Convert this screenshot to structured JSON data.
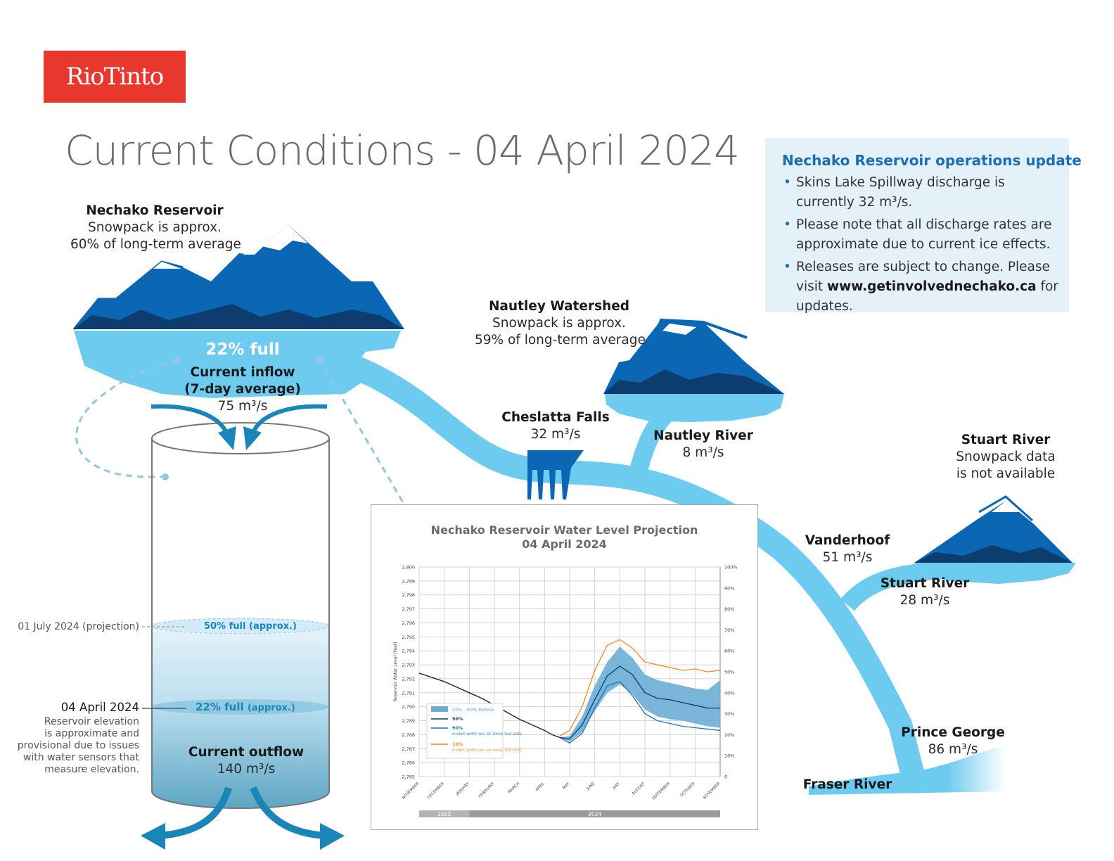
{
  "logo": {
    "text": "RioTinto"
  },
  "title": "Current Conditions - 04 April 2024",
  "ops_update": {
    "heading": "Nechako Reservoir operations update",
    "items": [
      {
        "text": "Skins Lake Spillway discharge is currently 32 m³/s."
      },
      {
        "text_before": "Please note that all discharge rates are approximate due to current ice effects."
      },
      {
        "text": "Releases are subject to change. Please visit",
        "link": "www.getinvolvednechako.ca",
        "after": "for updates."
      }
    ]
  },
  "reservoir": {
    "name": "Nechako Reservoir",
    "line1": "Snowpack is approx.",
    "line2": "60% of long-term average",
    "full": "22% full",
    "inflow_title": "Current inflow",
    "inflow_sub": "(7-day average)",
    "inflow_value": "75 m³/s",
    "outflow_title": "Current outflow",
    "outflow_value": "140 m³/s"
  },
  "nautley_ws": {
    "name": "Nautley Watershed",
    "line1": "Snowpack is approx.",
    "line2": "59% of long-term average"
  },
  "cheslatta": {
    "name": "Cheslatta Falls",
    "value": "32 m³/s"
  },
  "nautley_river": {
    "name": "Nautley River",
    "value": "8 m³/s"
  },
  "stuart_ws": {
    "name": "Stuart River",
    "line1": "Snowpack data",
    "line2": "is not available"
  },
  "vanderhoof": {
    "name": "Vanderhoof",
    "value": "51 m³/s"
  },
  "stuart_river": {
    "name": "Stuart River",
    "value": "28 m³/s"
  },
  "prince_george": {
    "name": "Prince George",
    "value": "86 m³/s"
  },
  "fraser": {
    "name": "Fraser River"
  },
  "tank": {
    "proj_date": "01 July 2024 (projection)",
    "proj_label": "50% full",
    "proj_suffix": "(approx.)",
    "cur_date": "04 April 2024",
    "cur_label": "22% full",
    "cur_suffix": "(approx.)",
    "note": [
      "Reservoir elevation",
      "is approximate and",
      "provisional due to issues",
      "with water sensors that",
      "measure elevation."
    ]
  },
  "chart_data": {
    "type": "line",
    "title": "Nechako Reservoir Water Level Projection",
    "subtitle": "04 April 2024",
    "ylabel": "Reservoir Water Level (Feet)",
    "ylim": [
      2785,
      2800
    ],
    "yticks": [
      "2,800",
      "2,799",
      "2,798",
      "2,797",
      "2,796",
      "2,795",
      "2,794",
      "2,793",
      "2,792",
      "2,791",
      "2,790",
      "2,789",
      "2,788",
      "2,787",
      "2,786",
      "2,785"
    ],
    "y2ticks": [
      "100%",
      "90%",
      "80%",
      "70%",
      "60%",
      "50%",
      "40%",
      "30%",
      "20%",
      "10%",
      "0"
    ],
    "categories": [
      "NOVEMBER",
      "DECEMBER",
      "JANUARY",
      "FEBRUARY",
      "MARCH",
      "APRIL",
      "MAY",
      "JUNE",
      "JULY",
      "AUGUST",
      "SEPTEMBER",
      "OCTOBER",
      "NOVEMBER"
    ],
    "years": [
      "2023",
      "2024"
    ],
    "historical": {
      "x": [
        0,
        0.5,
        1,
        1.5,
        2,
        2.5,
        3,
        3.5,
        4,
        4.5,
        5,
        5.3,
        5.6
      ],
      "y": [
        2792.4,
        2792.1,
        2791.8,
        2791.4,
        2791.0,
        2790.6,
        2790.1,
        2789.6,
        2789.1,
        2788.7,
        2788.3,
        2788.0,
        2787.8
      ]
    },
    "series": [
      {
        "name": "20% - 80% RANGE",
        "x": [
          5.6,
          6,
          6.5,
          7,
          7.5,
          8,
          8.5,
          9,
          9.5,
          10,
          10.5,
          11,
          11.5,
          12
        ],
        "upper": [
          2787.8,
          2787.9,
          2789.3,
          2791.5,
          2793.2,
          2794.3,
          2793.5,
          2792.3,
          2791.9,
          2791.7,
          2791.5,
          2791.3,
          2791.2,
          2791.9
        ],
        "lower": [
          2787.8,
          2787.5,
          2788.2,
          2789.7,
          2791.0,
          2791.6,
          2790.9,
          2789.8,
          2789.3,
          2789.1,
          2789.0,
          2788.8,
          2788.6,
          2788.5
        ]
      },
      {
        "name": "50%",
        "x": [
          5.6,
          6,
          6.5,
          7,
          7.5,
          8,
          8.5,
          9,
          9.5,
          10,
          10.5,
          11,
          11.5,
          12
        ],
        "y": [
          2787.8,
          2787.7,
          2788.7,
          2790.5,
          2792.2,
          2792.9,
          2792.3,
          2791.0,
          2790.6,
          2790.5,
          2790.3,
          2790.1,
          2789.9,
          2789.9
        ]
      },
      {
        "name": "90%",
        "legend_sub": "CHANCE WATER WILL BE ABOVE THIS LEVEL",
        "x": [
          5.6,
          6,
          6.5,
          7,
          7.5,
          8,
          8.5,
          9,
          9.5,
          10,
          10.5,
          11,
          11.5,
          12
        ],
        "y": [
          2787.8,
          2787.4,
          2788.1,
          2789.9,
          2791.5,
          2791.8,
          2790.8,
          2789.5,
          2789.0,
          2788.8,
          2788.6,
          2788.5,
          2788.4,
          2788.3
        ]
      },
      {
        "name": "10%",
        "legend_sub": "CHANCE WATER WILL BE ABOVE THIS LEVEL",
        "x": [
          5.6,
          6,
          6.5,
          7,
          7.5,
          8,
          8.5,
          9,
          9.5,
          10,
          10.5,
          11,
          11.5,
          12
        ],
        "y": [
          2787.9,
          2788.3,
          2790.0,
          2792.6,
          2794.4,
          2794.8,
          2794.2,
          2793.2,
          2793.0,
          2792.8,
          2792.6,
          2792.7,
          2792.5,
          2792.6
        ]
      }
    ],
    "colors": {
      "range": "#6aaed6",
      "p50": "#0d3d6e",
      "p90": "#1a75bb",
      "p10": "#f08a24",
      "hist": "#222222"
    },
    "grid": true
  }
}
